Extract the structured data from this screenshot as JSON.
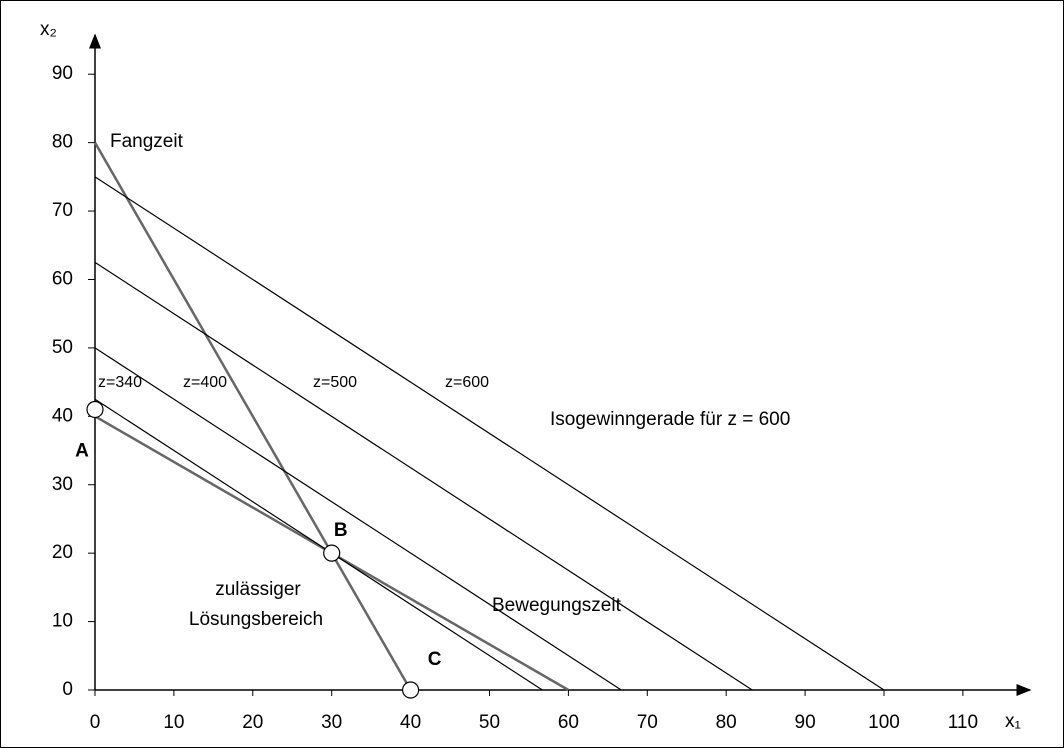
{
  "chart_data": {
    "type": "line",
    "x_label": "x₁",
    "y_label": "x₂",
    "xlim": [
      0,
      118
    ],
    "ylim": [
      0,
      95
    ],
    "xticks": [
      0,
      10,
      20,
      30,
      40,
      50,
      60,
      70,
      80,
      90,
      100,
      110
    ],
    "yticks": [
      0,
      10,
      20,
      30,
      40,
      50,
      60,
      70,
      80,
      90
    ],
    "series": [
      {
        "name": "Fangzeit",
        "color": "#666666",
        "x": [
          0,
          40
        ],
        "values": [
          80,
          0
        ]
      },
      {
        "name": "Bewegungszeit",
        "color": "#666666",
        "x": [
          0,
          60
        ],
        "values": [
          40,
          0
        ]
      },
      {
        "name": "z=340",
        "color": "#000000",
        "x": [
          0,
          56.7
        ],
        "values": [
          42.5,
          0
        ]
      },
      {
        "name": "z=400",
        "color": "#000000",
        "x": [
          0,
          66.7
        ],
        "values": [
          50,
          0
        ]
      },
      {
        "name": "z=500",
        "color": "#000000",
        "x": [
          0,
          83.3
        ],
        "values": [
          62.5,
          0
        ]
      },
      {
        "name": "z=600",
        "color": "#000000",
        "x": [
          0,
          100
        ],
        "values": [
          75,
          0
        ]
      }
    ],
    "points": {
      "labels": [
        "A",
        "B",
        "C"
      ],
      "x": [
        0,
        30,
        40
      ],
      "values": [
        41,
        20,
        0
      ]
    },
    "annotations": [
      "Isogewinngerade für z = 600",
      "zulässiger",
      "Lösungsbereich"
    ]
  }
}
